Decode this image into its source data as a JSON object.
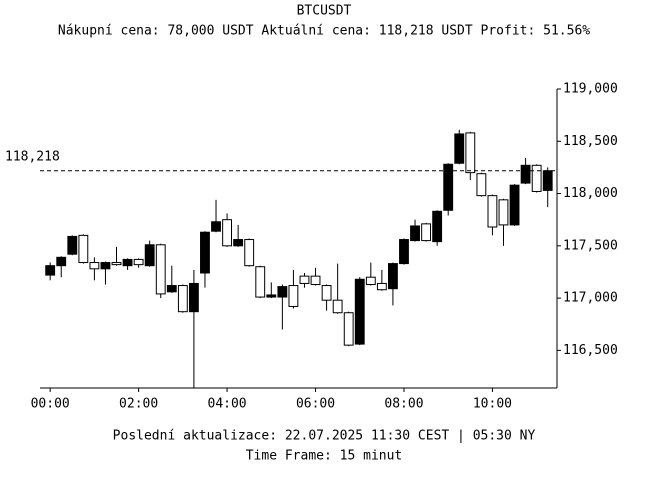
{
  "chart_data": {
    "type": "candlestick",
    "title": "BTCUSDT",
    "subtitle": "Nákupní cena: 78,000 USDT Aktuální cena: 118,218 USDT Profit: 51.56%",
    "footnotes": [
      "Poslední aktualizace: 22.07.2025 11:30 CEST | 05:30 NY",
      "Time Frame: 15 minut"
    ],
    "x": [
      0,
      0.25,
      0.5,
      0.75,
      1,
      1.25,
      1.5,
      1.75,
      2,
      2.25,
      2.5,
      2.75,
      3,
      3.25,
      3.5,
      3.75,
      4,
      4.25,
      4.5,
      4.75,
      5,
      5.25,
      5.5,
      5.75,
      6,
      6.25,
      6.5,
      6.75,
      7,
      7.25,
      7.5,
      7.75,
      8,
      8.25,
      8.5,
      8.75,
      9,
      9.25,
      9.5,
      9.75,
      10,
      10.25,
      10.5,
      10.75,
      11,
      11.25
    ],
    "open": [
      117220,
      117310,
      117420,
      117600,
      117340,
      117280,
      117340,
      117310,
      117370,
      117310,
      117510,
      117060,
      117120,
      116870,
      117240,
      117640,
      117750,
      117500,
      117560,
      117300,
      117010,
      117010,
      117120,
      117210,
      117210,
      117120,
      116980,
      116860,
      116560,
      117200,
      117140,
      117090,
      117330,
      117550,
      117710,
      117540,
      117840,
      118290,
      118580,
      118190,
      117980,
      117940,
      117700,
      118100,
      118270,
      118030
    ],
    "high": [
      117340,
      117400,
      117600,
      117610,
      117390,
      117350,
      117490,
      117380,
      117380,
      117550,
      117520,
      117310,
      117130,
      117270,
      117640,
      117940,
      117810,
      117700,
      117570,
      117310,
      117150,
      117130,
      117270,
      117240,
      117290,
      117130,
      117330,
      116870,
      117200,
      117340,
      117270,
      117340,
      117570,
      117750,
      117720,
      117840,
      118290,
      118610,
      118590,
      118200,
      117990,
      117950,
      118090,
      118340,
      118280,
      118250
    ],
    "low": [
      117170,
      117200,
      117410,
      117330,
      117170,
      117130,
      117310,
      117270,
      117290,
      117300,
      117000,
      117050,
      116860,
      116140,
      117100,
      117630,
      117490,
      117490,
      117300,
      117000,
      117000,
      116700,
      116900,
      117100,
      117120,
      116880,
      116850,
      116540,
      116550,
      117120,
      117070,
      116930,
      117320,
      117540,
      117540,
      117500,
      117790,
      118280,
      118130,
      117970,
      117600,
      117500,
      117690,
      118090,
      118010,
      117870
    ],
    "close": [
      117310,
      117390,
      117590,
      117340,
      117280,
      117340,
      117320,
      117370,
      117320,
      117510,
      117040,
      117120,
      116870,
      117140,
      117630,
      117730,
      117500,
      117560,
      117310,
      117010,
      117030,
      117110,
      116920,
      117140,
      117130,
      116980,
      116860,
      116550,
      117180,
      117130,
      117080,
      117330,
      117560,
      117690,
      117550,
      117830,
      118280,
      118570,
      118200,
      117980,
      117680,
      117700,
      118080,
      118270,
      118020,
      118218
    ],
    "up_color": "#000000",
    "down_color": "#ffffff",
    "edge_color": "#000000",
    "xlim": [
      -0.23,
      11.46
    ],
    "xticks": [
      {
        "value": 0,
        "label": "00:00"
      },
      {
        "value": 2,
        "label": "02:00"
      },
      {
        "value": 4,
        "label": "04:00"
      },
      {
        "value": 6,
        "label": "06:00"
      },
      {
        "value": 8,
        "label": "08:00"
      },
      {
        "value": 10,
        "label": "10:00"
      }
    ],
    "ylim": [
      116140,
      119000
    ],
    "yticks": [
      {
        "value": 116500,
        "label": "116,500"
      },
      {
        "value": 117000,
        "label": "117,000"
      },
      {
        "value": 117500,
        "label": "117,500"
      },
      {
        "value": 118000,
        "label": "118,000"
      },
      {
        "value": 118500,
        "label": "118,500"
      },
      {
        "value": 119000,
        "label": "119,000"
      }
    ],
    "hline": {
      "value": 118218,
      "label": "118,218"
    }
  }
}
